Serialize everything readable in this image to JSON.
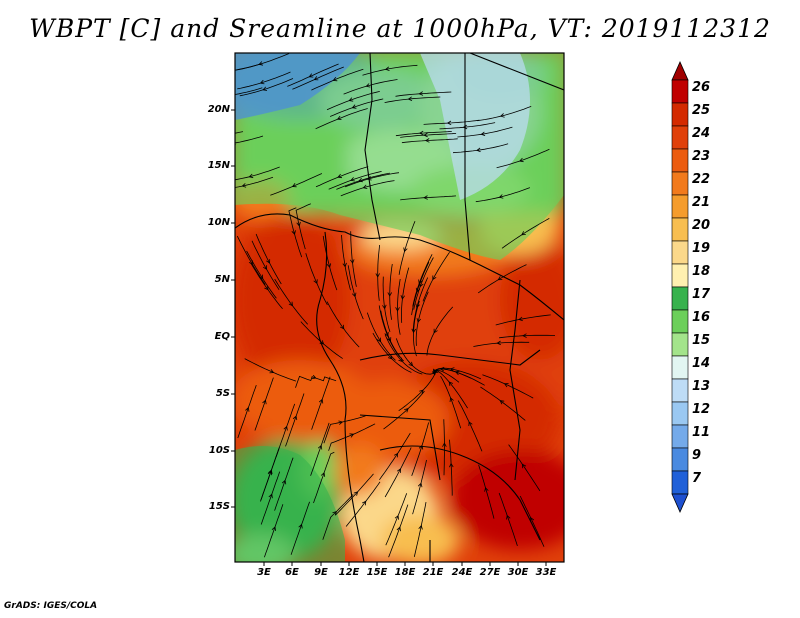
{
  "title": "WBPT [C] and Sreamline at 1000hPa, VT: 2019112312",
  "credit": "GrADS: IGES/COLA",
  "latitude_labels": [
    "20N",
    "15N",
    "10N",
    "5N",
    "EQ",
    "5S",
    "10S",
    "15S"
  ],
  "longitude_labels": [
    "3E",
    "6E",
    "9E",
    "12E",
    "15E",
    "18E",
    "21E",
    "24E",
    "27E",
    "30E",
    "33E"
  ],
  "colorbar": {
    "labels": [
      "26",
      "25",
      "24",
      "23",
      "22",
      "21",
      "20",
      "19",
      "18",
      "17",
      "16",
      "15",
      "14",
      "13",
      "12",
      "11",
      "9",
      "7"
    ],
    "colors": [
      "#c00000",
      "#d42a00",
      "#e0400a",
      "#ec5c10",
      "#f27a1c",
      "#f59c2c",
      "#f8be50",
      "#fbd88a",
      "#fff0b0",
      "#37b24d",
      "#6ccf5a",
      "#a3e48b",
      "#e2f6f2",
      "#bedcf6",
      "#9ac8f2",
      "#74aaea",
      "#4a8ae0",
      "#2060d8"
    ],
    "over_color": "#a00000",
    "under_color": "#1e50d0"
  }
}
